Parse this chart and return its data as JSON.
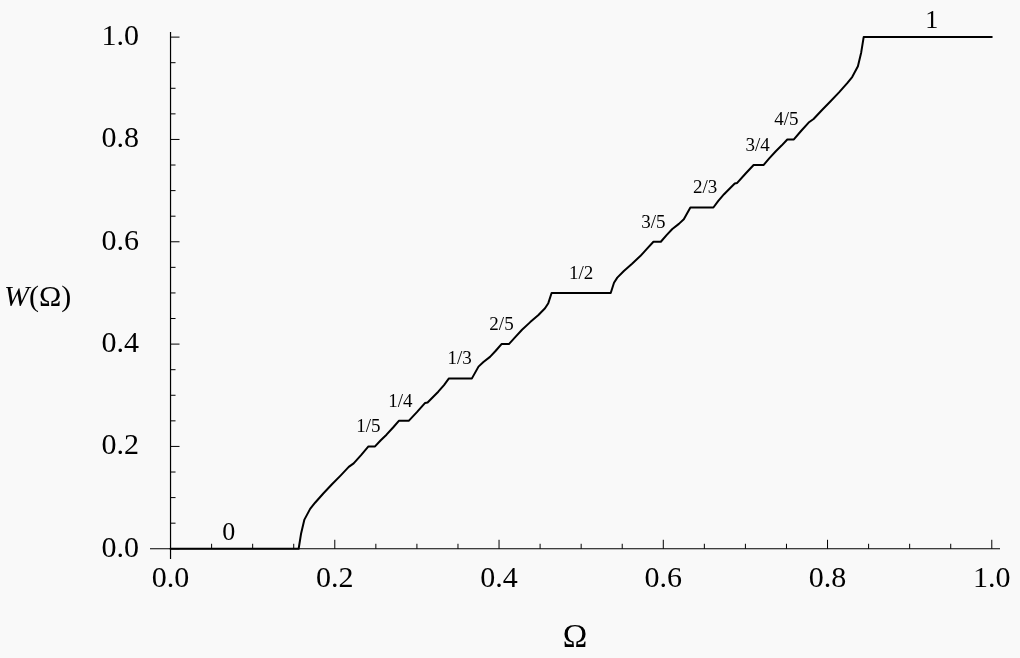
{
  "chart_data": {
    "type": "line",
    "xlabel": "Ω",
    "ylabel": "W(Ω)",
    "color": "#000000",
    "x": [
      0,
      0.156,
      0.159,
      0.163,
      0.17,
      0.176,
      0.186,
      0.196,
      0.207,
      0.217,
      0.223,
      0.232,
      0.241,
      0.249,
      0.256,
      0.263,
      0.271,
      0.278,
      0.29,
      0.3,
      0.31,
      0.313,
      0.326,
      0.333,
      0.339,
      0.367,
      0.375,
      0.381,
      0.389,
      0.396,
      0.403,
      0.412,
      0.42,
      0.428,
      0.438,
      0.448,
      0.456,
      0.46,
      0.464,
      0.536,
      0.54,
      0.544,
      0.552,
      0.562,
      0.572,
      0.58,
      0.588,
      0.597,
      0.604,
      0.611,
      0.619,
      0.625,
      0.633,
      0.661,
      0.667,
      0.674,
      0.687,
      0.69,
      0.7,
      0.71,
      0.722,
      0.729,
      0.737,
      0.744,
      0.751,
      0.759,
      0.768,
      0.777,
      0.783,
      0.793,
      0.804,
      0.814,
      0.824,
      0.83,
      0.837,
      0.841,
      0.844,
      1
    ],
    "values": [
      0,
      0,
      0.03,
      0.057,
      0.078,
      0.09,
      0.108,
      0.125,
      0.143,
      0.16,
      0.167,
      0.183,
      0.2,
      0.2,
      0.212,
      0.223,
      0.237,
      0.25,
      0.25,
      0.267,
      0.285,
      0.286,
      0.307,
      0.32,
      0.333,
      0.333,
      0.356,
      0.365,
      0.375,
      0.387,
      0.4,
      0.4,
      0.414,
      0.428,
      0.443,
      0.457,
      0.47,
      0.48,
      0.5,
      0.5,
      0.52,
      0.53,
      0.543,
      0.557,
      0.572,
      0.586,
      0.6,
      0.6,
      0.613,
      0.625,
      0.635,
      0.644,
      0.667,
      0.667,
      0.68,
      0.693,
      0.714,
      0.715,
      0.733,
      0.75,
      0.75,
      0.763,
      0.777,
      0.788,
      0.8,
      0.8,
      0.817,
      0.833,
      0.84,
      0.857,
      0.875,
      0.892,
      0.91,
      0.922,
      0.943,
      0.97,
      1,
      1
    ],
    "xlim": [
      -0.025,
      1.01
    ],
    "ylim": [
      -0.02,
      1.01
    ],
    "xticks": [
      {
        "value": 0,
        "label": "0.0"
      },
      {
        "value": 0.05,
        "label": null
      },
      {
        "value": 0.1,
        "label": null
      },
      {
        "value": 0.15,
        "label": null
      },
      0.2,
      {
        "value": 0.25,
        "label": null
      },
      {
        "value": 0.3,
        "label": null
      },
      {
        "value": 0.35,
        "label": null
      },
      0.4,
      {
        "value": 0.45,
        "label": null
      },
      {
        "value": 0.5,
        "label": null
      },
      {
        "value": 0.55,
        "label": null
      },
      0.6,
      {
        "value": 0.65,
        "label": null
      },
      {
        "value": 0.7,
        "label": null
      },
      {
        "value": 0.75,
        "label": null
      },
      0.8,
      {
        "value": 0.85,
        "label": null
      },
      {
        "value": 0.9,
        "label": null
      },
      {
        "value": 0.95,
        "label": null
      },
      {
        "value": 1,
        "label": "1.0"
      }
    ],
    "yticks": [
      {
        "value": 0,
        "label": "0.0"
      },
      {
        "value": 0.05,
        "label": null
      },
      {
        "value": 0.1,
        "label": null
      },
      {
        "value": 0.15,
        "label": null
      },
      0.2,
      {
        "value": 0.25,
        "label": null
      },
      {
        "value": 0.3,
        "label": null
      },
      {
        "value": 0.35,
        "label": null
      },
      0.4,
      {
        "value": 0.45,
        "label": null
      },
      {
        "value": 0.5,
        "label": null
      },
      {
        "value": 0.55,
        "label": null
      },
      0.6,
      {
        "value": 0.65,
        "label": null
      },
      {
        "value": 0.7,
        "label": null
      },
      {
        "value": 0.75,
        "label": null
      },
      0.8,
      {
        "value": 0.85,
        "label": null
      },
      {
        "value": 0.9,
        "label": null
      },
      {
        "value": 0.95,
        "label": null
      },
      {
        "value": 1,
        "label": "1.0"
      }
    ],
    "annotations": [
      {
        "text": "0",
        "x": 0.071,
        "y": 0
      },
      {
        "text": "1/5",
        "x": 0.241,
        "y": 0.2
      },
      {
        "text": "1/4",
        "x": 0.28,
        "y": 0.25
      },
      {
        "text": "1/3",
        "x": 0.352,
        "y": 0.333
      },
      {
        "text": "2/5",
        "x": 0.403,
        "y": 0.4
      },
      {
        "text": "1/2",
        "x": 0.5,
        "y": 0.5
      },
      {
        "text": "3/5",
        "x": 0.588,
        "y": 0.6
      },
      {
        "text": "2/3",
        "x": 0.651,
        "y": 0.667
      },
      {
        "text": "3/4",
        "x": 0.715,
        "y": 0.75
      },
      {
        "text": "4/5",
        "x": 0.75,
        "y": 0.8
      },
      {
        "text": "1",
        "x": 0.927,
        "y": 1
      }
    ]
  }
}
